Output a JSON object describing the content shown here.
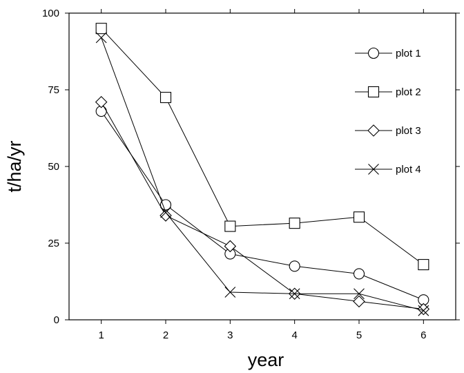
{
  "chart_data": {
    "type": "line",
    "title": "",
    "xlabel": "year",
    "ylabel": "t/ha/yr",
    "x": [
      1,
      2,
      3,
      4,
      5,
      6
    ],
    "xlim": [
      0.5,
      6.5
    ],
    "ylim": [
      0,
      100
    ],
    "xticks": [
      "1",
      "2",
      "3",
      "4",
      "5",
      "6"
    ],
    "yticks": [
      "0",
      "25",
      "50",
      "75",
      "100"
    ],
    "grid": false,
    "legend_position": "top-right",
    "series": [
      {
        "name": "plot 1",
        "marker": "circle",
        "values": [
          68,
          37.5,
          21.5,
          17.5,
          15,
          6.5
        ]
      },
      {
        "name": "plot 2",
        "marker": "square",
        "values": [
          95,
          72.5,
          30.5,
          31.5,
          33.5,
          18
        ]
      },
      {
        "name": "plot 3",
        "marker": "diamond",
        "values": [
          71,
          34,
          24,
          8.5,
          6,
          3.5
        ]
      },
      {
        "name": "plot 4",
        "marker": "cross",
        "values": [
          92,
          35,
          9,
          8.5,
          8.5,
          3
        ]
      }
    ]
  }
}
